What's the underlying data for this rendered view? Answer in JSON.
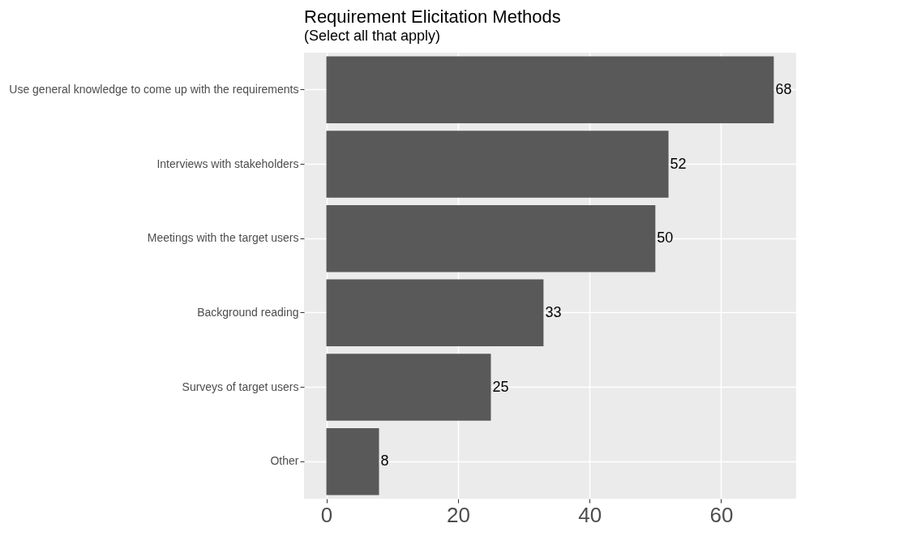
{
  "chart_data": {
    "type": "bar",
    "orientation": "horizontal",
    "title": "Requirement Elicitation Methods",
    "subtitle": "(Select all that apply)",
    "categories": [
      "Use general knowledge to come up with the requirements",
      "Interviews with stakeholders",
      "Meetings with the target users",
      "Background reading",
      "Surveys of target users",
      "Other"
    ],
    "values": [
      68,
      52,
      50,
      33,
      25,
      8
    ],
    "color": "#595959",
    "xlim": [
      -3.4,
      71.4
    ],
    "xticks": [
      0,
      20,
      40,
      60
    ],
    "grid": true,
    "data_labels": true
  }
}
